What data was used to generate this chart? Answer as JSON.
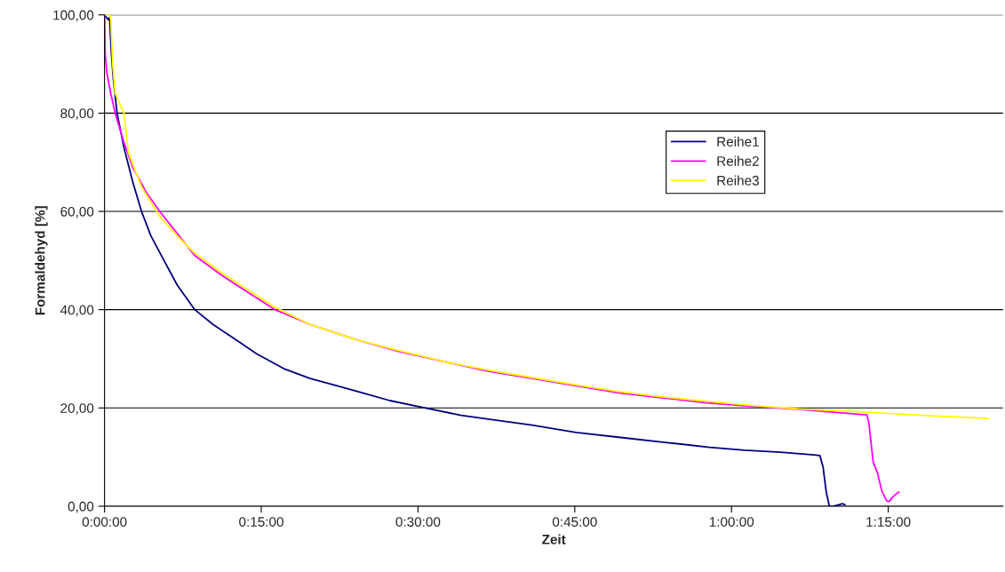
{
  "chart_data": {
    "type": "line",
    "xlabel": "Zeit",
    "ylabel": "Formaldehyd [%]",
    "xlim": [
      0,
      1.433
    ],
    "ylim": [
      0,
      100
    ],
    "xticks": [
      {
        "value": 0,
        "label": "0:00:00"
      },
      {
        "value": 0.25,
        "label": "0:15:00"
      },
      {
        "value": 0.5,
        "label": "0:30:00"
      },
      {
        "value": 0.75,
        "label": "0:45:00"
      },
      {
        "value": 1.0,
        "label": "1:00:00"
      },
      {
        "value": 1.25,
        "label": "1:15:00"
      }
    ],
    "yticks": [
      {
        "value": 0,
        "label": "0,00"
      },
      {
        "value": 20,
        "label": "20,00"
      },
      {
        "value": 40,
        "label": "40,00"
      },
      {
        "value": 60,
        "label": "60,00"
      },
      {
        "value": 80,
        "label": "80,00"
      },
      {
        "value": 100,
        "label": "100,00"
      }
    ],
    "grid": "y",
    "legend": "right",
    "marker": "none",
    "line_style": "solid",
    "series": [
      {
        "name": "Reihe1",
        "color": "#000080",
        "x": [
          0,
          0.006,
          0.008,
          0.011,
          0.014,
          0.02,
          0.031,
          0.045,
          0.059,
          0.074,
          0.095,
          0.116,
          0.144,
          0.173,
          0.208,
          0.243,
          0.286,
          0.328,
          0.371,
          0.413,
          0.455,
          0.512,
          0.569,
          0.625,
          0.682,
          0.752,
          0.823,
          0.894,
          0.965,
          1.021,
          1.078,
          1.127,
          1.141,
          1.146,
          1.151,
          1.156,
          1.163,
          1.177,
          1.181
        ],
        "values": [
          100,
          99,
          99.5,
          92,
          87,
          80,
          73,
          66,
          60,
          55,
          50,
          45,
          40,
          37,
          34,
          31,
          28,
          26,
          24.5,
          23,
          21.5,
          20,
          18.5,
          17.5,
          16.5,
          15,
          14,
          13,
          12,
          11.4,
          11,
          10.5,
          10.3,
          8,
          3,
          0,
          0,
          0.5,
          0.3
        ]
      },
      {
        "name": "Reihe2",
        "color": "#ff00ff",
        "x": [
          0,
          0.001,
          0.004,
          0.01,
          0.017,
          0.031,
          0.045,
          0.066,
          0.088,
          0.116,
          0.144,
          0.187,
          0.229,
          0.272,
          0.328,
          0.399,
          0.469,
          0.54,
          0.611,
          0.682,
          0.752,
          0.823,
          0.894,
          0.965,
          1.035,
          1.106,
          1.216,
          1.219,
          1.226,
          1.233,
          1.24,
          1.248,
          1.252,
          1.258,
          1.267
        ],
        "values": [
          100,
          92,
          88,
          84,
          80,
          74,
          69,
          64,
          60,
          55.5,
          51,
          47,
          43.5,
          40,
          37,
          34,
          31.5,
          29.5,
          27.5,
          26,
          24.5,
          23,
          22,
          21,
          20.3,
          19.7,
          18.6,
          17,
          9,
          6.7,
          3,
          1,
          1,
          2,
          2.9
        ]
      },
      {
        "name": "Reihe3",
        "color": "#ffff00",
        "x": [
          0,
          0.008,
          0.01,
          0.013,
          0.017,
          0.031,
          0.038,
          0.059,
          0.088,
          0.116,
          0.144,
          0.187,
          0.229,
          0.272,
          0.328,
          0.399,
          0.469,
          0.54,
          0.611,
          0.682,
          0.752,
          0.823,
          0.894,
          0.965,
          1.035,
          1.106,
          1.177,
          1.248,
          1.318,
          1.389,
          1.41
        ],
        "values": [
          100,
          100,
          99,
          90,
          84,
          80,
          72,
          65,
          59,
          55,
          51.5,
          47.5,
          44,
          40.5,
          37,
          34,
          31.7,
          29.5,
          27.7,
          26.2,
          24.7,
          23.3,
          22.2,
          21.3,
          20.5,
          19.8,
          19.4,
          18.9,
          18.4,
          18,
          17.8
        ]
      }
    ]
  }
}
